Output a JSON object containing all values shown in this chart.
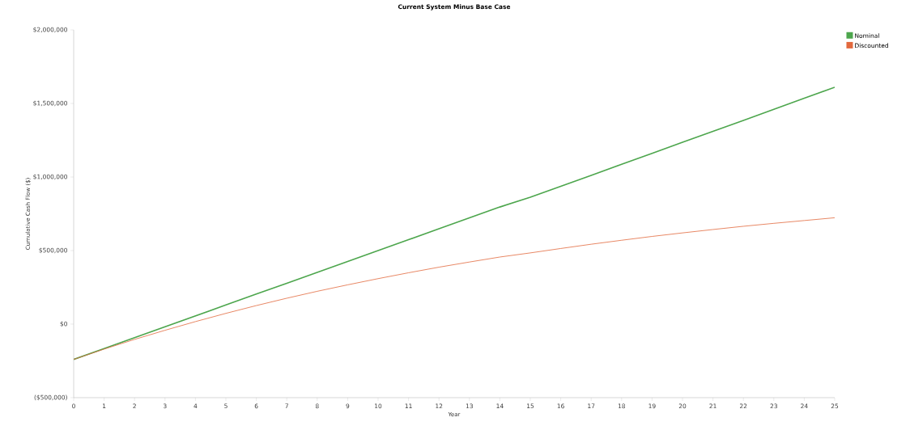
{
  "chart_data": {
    "type": "line",
    "title": "Current System Minus Base Case",
    "xlabel": "Year",
    "ylabel": "Cumulative Cash Flow ($)",
    "x": [
      0,
      1,
      2,
      3,
      4,
      5,
      6,
      7,
      8,
      9,
      10,
      11,
      12,
      13,
      14,
      15,
      16,
      17,
      18,
      19,
      20,
      21,
      22,
      23,
      24,
      25
    ],
    "series": [
      {
        "name": "Nominal",
        "color": "#4da64d",
        "values": [
          -240000,
          -166000,
          -92000,
          -18000,
          56000,
          130000,
          204000,
          278000,
          352000,
          426000,
          500000,
          574000,
          648000,
          722000,
          796000,
          862000,
          937000,
          1011000,
          1086000,
          1161000,
          1236000,
          1311000,
          1385000,
          1460000,
          1535000,
          1610000
        ]
      },
      {
        "name": "Discounted",
        "color": "#e2693e",
        "values": [
          -240000,
          -170000,
          -104000,
          -42000,
          17000,
          73000,
          126000,
          176000,
          223000,
          267000,
          309000,
          349000,
          387000,
          422000,
          456000,
          484000,
          514000,
          543000,
          570000,
          596000,
          620000,
          643000,
          665000,
          685000,
          704000,
          723000
        ]
      }
    ],
    "xlim": [
      0,
      25
    ],
    "xticks": [
      0,
      1,
      2,
      3,
      4,
      5,
      6,
      7,
      8,
      9,
      10,
      11,
      12,
      13,
      14,
      15,
      16,
      17,
      18,
      19,
      20,
      21,
      22,
      23,
      24,
      25
    ],
    "ylim": [
      -500000,
      2000000
    ],
    "yticks": [
      {
        "value": -500000,
        "label": "($500,000)"
      },
      {
        "value": 0,
        "label": "$0"
      },
      {
        "value": 500000,
        "label": "$500,000"
      },
      {
        "value": 1000000,
        "label": "$1,000,000"
      },
      {
        "value": 1500000,
        "label": "$1,500,000"
      },
      {
        "value": 2000000,
        "label": "$2,000,000"
      }
    ],
    "grid": false,
    "legend": "top right",
    "marker": "none",
    "line_style": "solid"
  }
}
